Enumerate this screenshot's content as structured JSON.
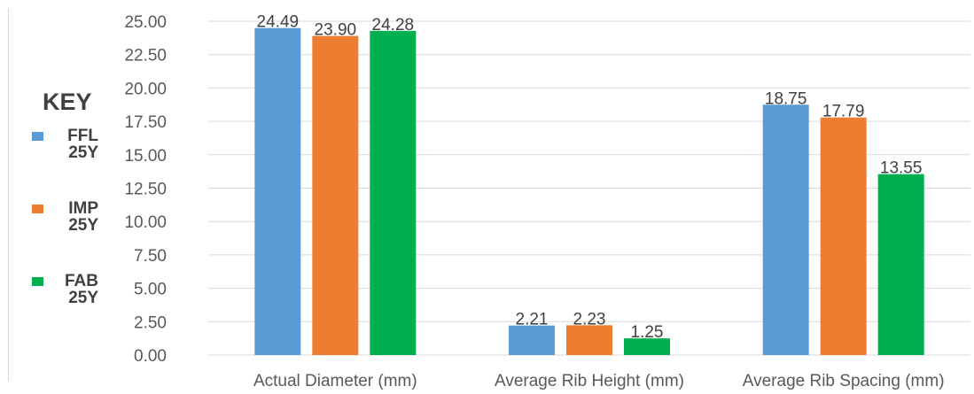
{
  "chart_data": {
    "type": "bar",
    "categories": [
      "Actual  Diameter (mm)",
      "Average Rib Height (mm)",
      "Average Rib Spacing (mm)"
    ],
    "series": [
      {
        "name": "FFL 25Y",
        "color": "#5b9bd5",
        "values": [
          24.49,
          2.21,
          18.75
        ],
        "labels": [
          "24.49",
          "2.21",
          "18.75"
        ]
      },
      {
        "name": "IMP 25Y",
        "color": "#ed7d31",
        "values": [
          23.9,
          2.23,
          17.79
        ],
        "labels": [
          "23.90",
          "2.23",
          "17.79"
        ]
      },
      {
        "name": "FAB 25Y",
        "color": "#00b050",
        "values": [
          24.28,
          1.25,
          13.55
        ],
        "labels": [
          "24.28",
          "1.25",
          "13.55"
        ]
      }
    ],
    "yticks": [
      "0.00",
      "2.50",
      "5.00",
      "7.50",
      "10.00",
      "12.50",
      "15.00",
      "17.50",
      "20.00",
      "22.50",
      "25.00"
    ],
    "ylim": [
      0,
      25
    ],
    "grid": true,
    "legend": {
      "title": "KEY",
      "position": "left",
      "items": [
        {
          "label": "FFL\n25Y",
          "color": "#5b9bd5"
        },
        {
          "label": "IMP\n25Y",
          "color": "#ed7d31"
        },
        {
          "label": "FAB\n25Y",
          "color": "#00b050"
        }
      ]
    }
  }
}
